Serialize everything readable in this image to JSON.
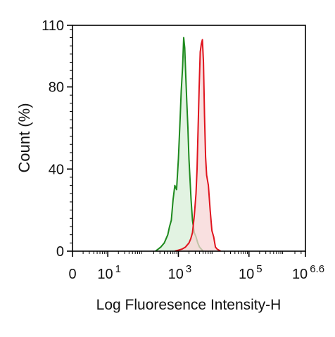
{
  "chart_data": {
    "type": "area",
    "title": "",
    "xlabel": "Log Fluoresence Intensity-H",
    "ylabel": "Count  (%)",
    "xscale": "log",
    "xlim": [
      0,
      6.6
    ],
    "ylim": [
      0,
      110
    ],
    "grid": false,
    "legend": "none",
    "x_ticks": [
      {
        "value": 0,
        "base": "0",
        "exp": ""
      },
      {
        "value": 1,
        "base": "10",
        "exp": "1"
      },
      {
        "value": 3,
        "base": "10",
        "exp": "3"
      },
      {
        "value": 5,
        "base": "10",
        "exp": "5"
      },
      {
        "value": 6.6,
        "base": "10",
        "exp": "6.6"
      }
    ],
    "y_ticks": [
      "0",
      "40",
      "80",
      "110"
    ],
    "series": [
      {
        "color": "#1e8a1e",
        "fill": "#d8efd8",
        "x": [
          2.35,
          2.5,
          2.6,
          2.7,
          2.75,
          2.8,
          2.85,
          2.9,
          2.95,
          3.0,
          3.05,
          3.08,
          3.12,
          3.15,
          3.18,
          3.21,
          3.24,
          3.27,
          3.3,
          3.33,
          3.36,
          3.4,
          3.45,
          3.5,
          3.55,
          3.6,
          3.7
        ],
        "y": [
          0,
          2,
          4,
          8,
          12,
          15,
          25,
          32,
          30,
          45,
          65,
          78,
          90,
          104,
          99,
          85,
          72,
          60,
          45,
          35,
          25,
          15,
          9,
          7,
          4,
          2,
          0
        ]
      },
      {
        "color": "#e0141e",
        "fill": "#f7d5d5",
        "x": [
          2.9,
          3.1,
          3.2,
          3.3,
          3.35,
          3.4,
          3.45,
          3.5,
          3.53,
          3.56,
          3.59,
          3.62,
          3.65,
          3.68,
          3.71,
          3.74,
          3.77,
          3.8,
          3.85,
          3.9,
          3.95,
          4.0,
          4.05,
          4.1,
          4.2
        ],
        "y": [
          0,
          1,
          2,
          4,
          6,
          9,
          17,
          28,
          40,
          60,
          80,
          97,
          101,
          103,
          92,
          66,
          46,
          37,
          32,
          20,
          10,
          7,
          2,
          1,
          0
        ]
      }
    ]
  }
}
